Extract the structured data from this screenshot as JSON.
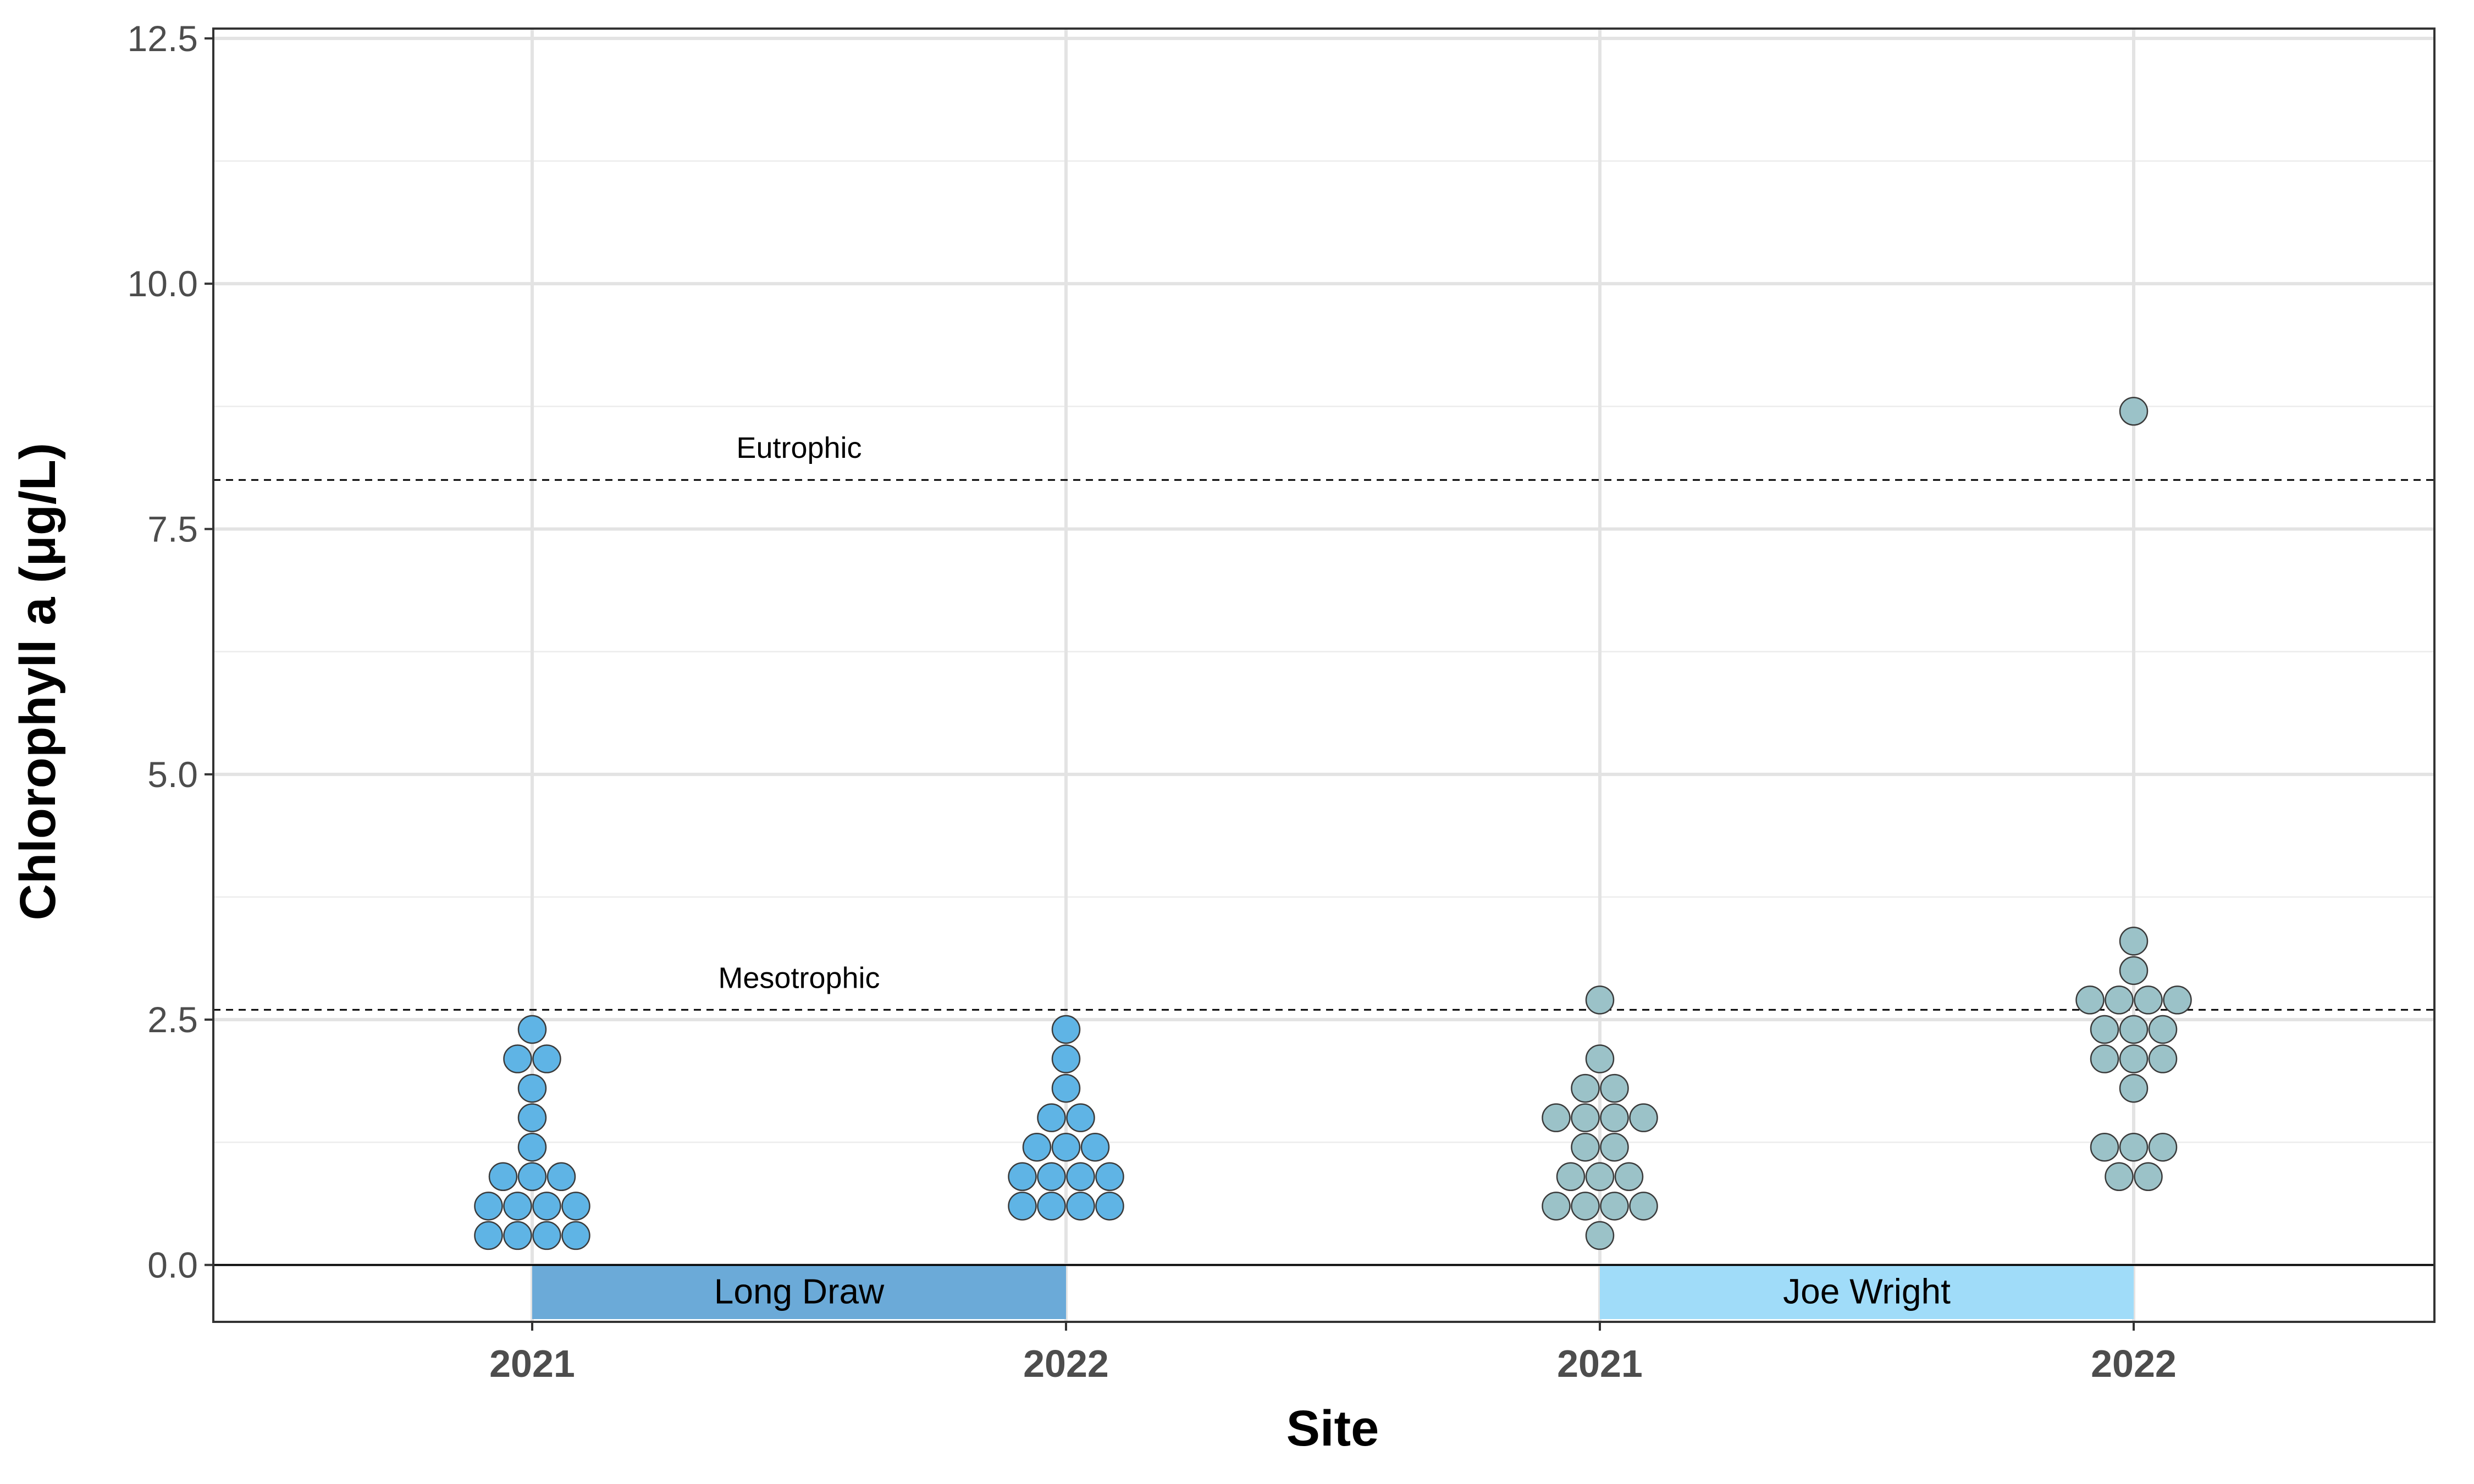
{
  "chart_data": {
    "type": "dotplot",
    "xlabel": "Site",
    "ylabel": "Chlorophyll a (μg/L)",
    "ylim": [
      -0.58,
      12.6
    ],
    "y_ticks": [
      "0.0",
      "2.5",
      "5.0",
      "7.5",
      "10.0",
      "12.5"
    ],
    "grid": true,
    "x_ticks": [
      "2021",
      "2022",
      "2021",
      "2022"
    ],
    "reference_lines": [
      {
        "label": "Eutrophic",
        "value": 8.0,
        "style": "dashed"
      },
      {
        "label": "Mesotrophic",
        "value": 2.6,
        "style": "dashed"
      }
    ],
    "site_bands": [
      {
        "label": "Long Draw",
        "from_index": 0,
        "to_index": 1,
        "color": "#6BAAD8"
      },
      {
        "label": "Joe Wright",
        "from_index": 2,
        "to_index": 3,
        "color": "#A0DCF9"
      }
    ],
    "groups": [
      {
        "site": "Long Draw",
        "year": "2021",
        "fill": "#5FB4E5",
        "values": [
          0.3,
          0.3,
          0.3,
          0.3,
          0.6,
          0.6,
          0.6,
          0.6,
          0.9,
          0.9,
          0.9,
          1.2,
          1.5,
          1.8,
          2.1,
          2.1,
          2.4
        ]
      },
      {
        "site": "Long Draw",
        "year": "2022",
        "fill": "#5FB4E5",
        "values": [
          0.6,
          0.6,
          0.6,
          0.6,
          0.9,
          0.9,
          0.9,
          0.9,
          1.2,
          1.2,
          1.2,
          1.5,
          1.5,
          1.8,
          2.1,
          2.4
        ]
      },
      {
        "site": "Joe Wright",
        "year": "2021",
        "fill": "#9BC2C8",
        "values": [
          0.3,
          0.6,
          0.6,
          0.6,
          0.6,
          0.9,
          0.9,
          0.9,
          1.2,
          1.2,
          1.5,
          1.5,
          1.5,
          1.5,
          1.8,
          1.8,
          2.1,
          2.7
        ]
      },
      {
        "site": "Joe Wright",
        "year": "2022",
        "fill": "#9BC2C8",
        "values": [
          0.9,
          0.9,
          1.2,
          1.2,
          1.2,
          1.8,
          2.1,
          2.1,
          2.1,
          2.4,
          2.4,
          2.4,
          2.7,
          2.7,
          2.7,
          2.7,
          3.0,
          3.3,
          8.7
        ]
      }
    ]
  }
}
